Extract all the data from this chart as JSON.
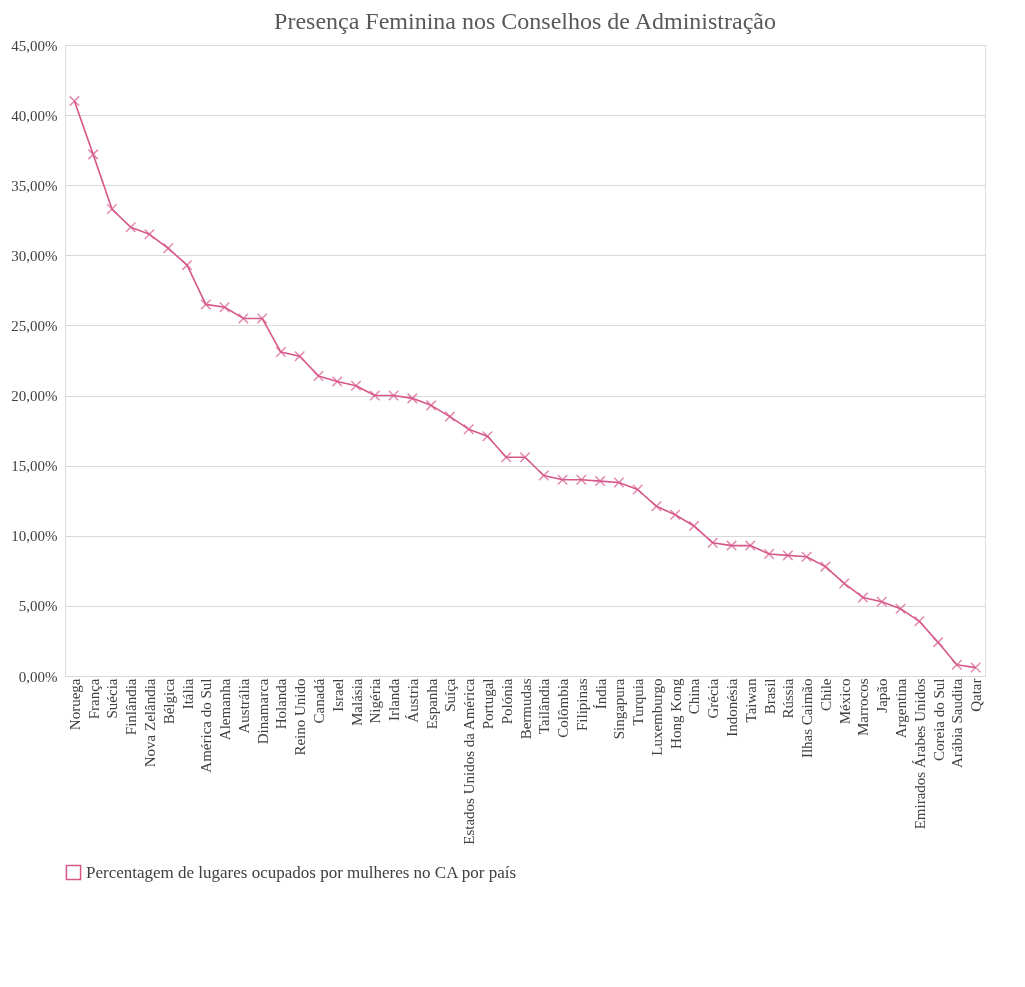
{
  "chart_data": {
    "type": "line",
    "title": "Presença Feminina nos Conselhos de Administração",
    "categories": [
      "Noruega",
      "França",
      "Suécia",
      "Finlândia",
      "Nova Zelândia",
      "Bélgica",
      "Itália",
      "América do Sul",
      "Alemanha",
      "Austrália",
      "Dinamarca",
      "Holanda",
      "Reino Unido",
      "Canadá",
      "Israel",
      "Malásia",
      "Nigéria",
      "Irlanda",
      "Áustria",
      "Espanha",
      "Suíça",
      "Estados Unidos da América",
      "Portugal",
      "Polónia",
      "Bermudas",
      "Tailândia",
      "Colômbia",
      "Filipinas",
      "Índia",
      "Singapura",
      "Turquia",
      "Luxemburgo",
      "Hong Kong",
      "China",
      "Grécia",
      "Indonésia",
      "Taiwan",
      "Brasil",
      "Rússia",
      "Ilhas Caimão",
      "Chile",
      "México",
      "Marrocos",
      "Japão",
      "Argentina",
      "Emirados Árabes Unidos",
      "Coreia do Sul",
      "Arábia Saudita",
      "Qatar"
    ],
    "series": [
      {
        "name": "Percentagem de lugares ocupados por mulheres no CA por país",
        "color": "#d6588a",
        "values": [
          41.0,
          37.2,
          33.3,
          32.0,
          31.5,
          30.5,
          29.3,
          26.5,
          26.3,
          25.5,
          25.5,
          23.1,
          22.8,
          21.4,
          21.0,
          20.7,
          20.0,
          20.0,
          19.8,
          19.3,
          18.5,
          17.6,
          17.1,
          15.6,
          15.6,
          14.3,
          14.0,
          14.0,
          13.9,
          13.8,
          13.3,
          12.1,
          11.5,
          10.7,
          9.5,
          9.3,
          9.3,
          8.7,
          8.6,
          8.5,
          7.8,
          6.6,
          5.6,
          5.3,
          4.8,
          3.9,
          2.4,
          0.8,
          0.6
        ]
      }
    ],
    "ylim": [
      0,
      45
    ],
    "yticks": [
      {
        "value": 0,
        "label": "0,00%"
      },
      {
        "value": 5,
        "label": "5,00%"
      },
      {
        "value": 10,
        "label": "10,00%"
      },
      {
        "value": 15,
        "label": "15,00%"
      },
      {
        "value": 20,
        "label": "20,00%"
      },
      {
        "value": 25,
        "label": "25,00%"
      },
      {
        "value": 30,
        "label": "30,00%"
      },
      {
        "value": 35,
        "label": "35,00%"
      },
      {
        "value": 40,
        "label": "40,00%"
      },
      {
        "value": 45,
        "label": "45,00%"
      }
    ],
    "grid": "y",
    "legend": "bottom",
    "marker": "cross",
    "line_style": "solid"
  }
}
